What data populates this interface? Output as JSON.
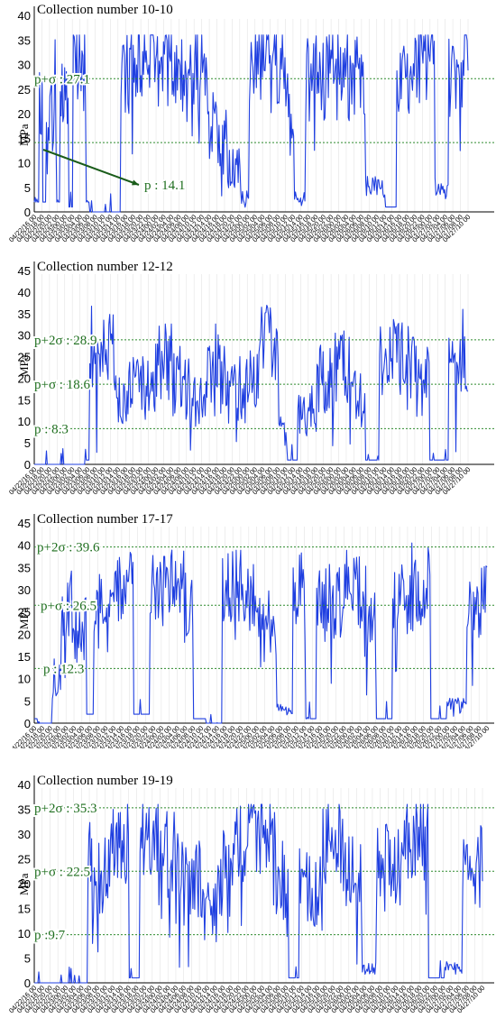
{
  "colors": {
    "series": "#1f3fe0",
    "threshold": "#2e8b2e",
    "threshold_text": "#1e6e1e",
    "arrow": "#1a5c1a"
  },
  "chart_data": [
    {
      "type": "line",
      "title": "Collection number 10-10",
      "ylabel": "MPa",
      "ylim": [
        0,
        40
      ],
      "yticks": [
        0,
        5,
        10,
        15,
        20,
        25,
        30,
        35,
        40
      ],
      "xtick_labels": [
        "04/22/16 00",
        "04/22/18 00",
        "04/22/20 00",
        "04/22/22 00",
        "04/23/00 00",
        "04/23/02 00",
        "04/23/04 00",
        "04/23/06 00",
        "04/23/08 00",
        "04/23/10 00",
        "04/23/12 00",
        "04/23/14 00",
        "04/23/16 00",
        "04/23/18 00",
        "04/23/20 00",
        "04/23/22 00",
        "04/24/00 00",
        "04/24/02 00",
        "04/24/04 00",
        "04/24/06 00",
        "04/24/08 00",
        "04/24/10 00",
        "04/24/12 00",
        "04/24/14 00",
        "04/24/16 00",
        "04/24/18 00",
        "04/24/20 00",
        "04/24/22 00",
        "04/25/00 00",
        "04/25/02 00",
        "04/25/04 00",
        "04/25/06 00",
        "04/25/08 00",
        "04/25/10 00",
        "04/25/12 00",
        "04/25/14 00",
        "04/25/16 00",
        "04/25/18 00",
        "04/25/20 00",
        "04/25/22 00",
        "04/26/00 00",
        "04/26/02 00",
        "04/26/04 00",
        "04/26/06 00",
        "04/26/08 00",
        "04/26/10 00",
        "04/26/12 00",
        "04/26/14 00",
        "04/26/16 00",
        "04/26/18 00",
        "04/26/20 00",
        "04/26/22 00",
        "04/27/00 00",
        "04/27/02 00",
        "04/27/04 00",
        "04/27/06 00",
        "04/27/08 00",
        "04/27/10 00"
      ],
      "thresholds": [
        {
          "label": "p+σ : 27.1",
          "value": 27.1
        },
        {
          "label": "p : 14.1",
          "value": 14.1,
          "annotated": true
        }
      ],
      "segments": [
        [
          0,
          6,
          2
        ],
        [
          6,
          10,
          22
        ],
        [
          10,
          14,
          2
        ],
        [
          14,
          26,
          20
        ],
        [
          26,
          30,
          2
        ],
        [
          30,
          40,
          24
        ],
        [
          40,
          45,
          1
        ],
        [
          45,
          60,
          29
        ],
        [
          60,
          64,
          2
        ],
        [
          64,
          100,
          0
        ],
        [
          100,
          120,
          27
        ],
        [
          120,
          138,
          32
        ],
        [
          138,
          160,
          29
        ],
        [
          160,
          180,
          27
        ],
        [
          180,
          200,
          30
        ],
        [
          200,
          212,
          18
        ],
        [
          212,
          224,
          13
        ],
        [
          224,
          238,
          9
        ],
        [
          238,
          248,
          3
        ],
        [
          248,
          262,
          31
        ],
        [
          262,
          280,
          34
        ],
        [
          280,
          292,
          27
        ],
        [
          292,
          300,
          20
        ],
        [
          300,
          313,
          3
        ],
        [
          313,
          340,
          27
        ],
        [
          340,
          360,
          31
        ],
        [
          360,
          382,
          27
        ],
        [
          382,
          404,
          5
        ],
        [
          404,
          418,
          1
        ],
        [
          418,
          440,
          29
        ],
        [
          440,
          462,
          31
        ],
        [
          462,
          478,
          4
        ],
        [
          478,
          496,
          27
        ],
        [
          496,
          500,
          31
        ]
      ]
    },
    {
      "type": "line",
      "title": "Collection number 12-12",
      "ylabel": "MPa",
      "ylim": [
        0,
        45
      ],
      "yticks": [
        0,
        5,
        10,
        15,
        20,
        25,
        30,
        35,
        40,
        45
      ],
      "xtick_labels": [
        "04/22/16 00",
        "04/22/18 00",
        "04/22/20 00",
        "04/22/22 00",
        "04/23/00 00",
        "04/23/02 00",
        "04/23/04 00",
        "04/23/06 00",
        "04/23/08 00",
        "04/23/10 00",
        "04/23/12 00",
        "04/23/14 00",
        "04/23/16 00",
        "04/23/18 00",
        "04/23/20 00",
        "04/23/22 00",
        "04/24/00 00",
        "04/24/02 00",
        "04/24/04 00",
        "04/24/06 00",
        "04/24/08 00",
        "04/24/10 00",
        "04/24/12 00",
        "04/24/14 00",
        "04/24/16 00",
        "04/24/18 00",
        "04/24/20 00",
        "04/24/22 00",
        "04/25/00 00",
        "04/25/02 00",
        "04/25/04 00",
        "04/25/06 00",
        "04/25/08 00",
        "04/25/10 00",
        "04/25/12 00",
        "04/25/14 00",
        "04/25/16 00",
        "04/25/18 00",
        "04/25/20 00",
        "04/25/22 00",
        "04/26/00 00",
        "04/26/02 00",
        "04/26/04 00",
        "04/26/06 00",
        "04/26/08 00",
        "04/26/10 00",
        "04/26/12 00",
        "04/26/14 00",
        "04/26/16 00",
        "04/26/18 00",
        "04/26/20 00",
        "04/26/22 00",
        "04/27/00 00",
        "04/27/02 00",
        "04/27/04 00",
        "04/27/06 00",
        "04/27/08 00",
        "04/27/10 00"
      ],
      "thresholds": [
        {
          "label": "p+2σ : 28.9",
          "value": 28.9
        },
        {
          "label": "p+σ : 18.6",
          "value": 18.6
        },
        {
          "label": "p : 8.3",
          "value": 8.3
        }
      ],
      "segments": [
        [
          0,
          60,
          0
        ],
        [
          60,
          64,
          1
        ],
        [
          64,
          78,
          22
        ],
        [
          78,
          92,
          27
        ],
        [
          92,
          110,
          16
        ],
        [
          110,
          140,
          18
        ],
        [
          140,
          160,
          24
        ],
        [
          160,
          180,
          19
        ],
        [
          180,
          200,
          16
        ],
        [
          200,
          220,
          20
        ],
        [
          220,
          245,
          17
        ],
        [
          245,
          262,
          22
        ],
        [
          262,
          282,
          28
        ],
        [
          282,
          292,
          8
        ],
        [
          292,
          304,
          1
        ],
        [
          304,
          326,
          12
        ],
        [
          326,
          346,
          20
        ],
        [
          346,
          366,
          23
        ],
        [
          366,
          382,
          15
        ],
        [
          382,
          398,
          1
        ],
        [
          398,
          420,
          25
        ],
        [
          420,
          440,
          24
        ],
        [
          440,
          456,
          20
        ],
        [
          456,
          478,
          1
        ],
        [
          478,
          500,
          22
        ]
      ]
    },
    {
      "type": "line",
      "title": "Collection number 17-17",
      "ylabel": "MPa",
      "ylim": [
        0,
        45
      ],
      "yticks": [
        0,
        5,
        10,
        15,
        20,
        25,
        30,
        35,
        40,
        45
      ],
      "xtick_labels": [
        "04/22/16 00",
        "04/22/18 00",
        "04/22/20 00",
        "04/22/22 00",
        "04/23/00 00",
        "04/23/02 00",
        "04/23/04 00",
        "04/23/06 00",
        "04/23/08 00",
        "04/23/10 00",
        "04/23/12 00",
        "04/23/14 00",
        "04/23/16 00",
        "04/23/18 00",
        "04/23/20 00",
        "04/23/22 00",
        "04/24/00 00",
        "04/24/02 00",
        "04/24/04 00",
        "04/24/06 00",
        "04/24/08 00",
        "04/24/10 00",
        "04/24/12 00",
        "04/24/14 00",
        "04/24/16 00",
        "04/24/18 00",
        "04/24/20 00",
        "04/24/22 00",
        "04/25/00 00",
        "04/25/02 00",
        "04/25/04 00",
        "04/25/06 00",
        "04/25/08 00",
        "04/25/10 00",
        "04/25/12 00",
        "04/25/14 00",
        "04/25/16 00",
        "04/25/18 00",
        "04/25/20 00",
        "04/25/22 00",
        "04/26/00 00",
        "04/26/02 00",
        "04/26/04 00",
        "04/26/06 00",
        "04/26/08 00",
        "04/26/10 00",
        "04/26/12 00",
        "04/26/14 00",
        "04/26/16 00",
        "04/26/18 00",
        "04/26/20 00",
        "04/26/22 00",
        "04/27/00 00",
        "04/27/02 00",
        "04/27/04 00",
        "04/27/06 00",
        "04/27/08 00",
        "04/27/10 00"
      ],
      "thresholds": [
        {
          "label": "p+2σ : 39.6",
          "value": 39.6
        },
        {
          "label": "p+σ : 26.5",
          "value": 26.5
        },
        {
          "label": "p : 12.3",
          "value": 12.3
        }
      ],
      "segments": [
        [
          0,
          4,
          1
        ],
        [
          4,
          20,
          0
        ],
        [
          20,
          30,
          10
        ],
        [
          30,
          45,
          26
        ],
        [
          45,
          58,
          22
        ],
        [
          58,
          66,
          2
        ],
        [
          66,
          86,
          25
        ],
        [
          86,
          110,
          30
        ],
        [
          110,
          128,
          2
        ],
        [
          128,
          160,
          30
        ],
        [
          160,
          176,
          27
        ],
        [
          176,
          190,
          1
        ],
        [
          190,
          208,
          0
        ],
        [
          208,
          226,
          31
        ],
        [
          226,
          250,
          26
        ],
        [
          250,
          268,
          22
        ],
        [
          268,
          286,
          3
        ],
        [
          286,
          300,
          31
        ],
        [
          300,
          312,
          1
        ],
        [
          312,
          342,
          27
        ],
        [
          342,
          362,
          30
        ],
        [
          362,
          378,
          21
        ],
        [
          378,
          396,
          1
        ],
        [
          396,
          420,
          28
        ],
        [
          420,
          438,
          31
        ],
        [
          438,
          456,
          1
        ],
        [
          456,
          478,
          4
        ],
        [
          478,
          500,
          27
        ]
      ]
    },
    {
      "type": "line",
      "title": "Collection number 19-19",
      "ylabel": "MPa",
      "ylim": [
        0,
        40
      ],
      "yticks": [
        0,
        5,
        10,
        15,
        20,
        25,
        30,
        35,
        40
      ],
      "xtick_labels": [
        "04/22/16 00",
        "04/22/18 00",
        "04/22/20 00",
        "04/22/22 00",
        "04/23/00 00",
        "04/23/02 00",
        "04/23/04 00",
        "04/23/06 00",
        "04/23/08 00",
        "04/23/10 00",
        "04/23/12 00",
        "04/23/14 00",
        "04/23/16 00",
        "04/23/18 00",
        "04/23/20 00",
        "04/23/22 00",
        "04/24/00 00",
        "04/24/02 00",
        "04/24/04 00",
        "04/24/06 00",
        "04/24/08 00",
        "04/24/10 00",
        "04/24/12 00",
        "04/24/14 00",
        "04/24/16 00",
        "04/24/18 00",
        "04/24/20 00",
        "04/24/22 00",
        "04/25/00 00",
        "04/25/02 00",
        "04/25/04 00",
        "04/25/06 00",
        "04/25/08 00",
        "04/25/10 00",
        "04/25/12 00",
        "04/25/14 00",
        "04/25/16 00",
        "04/25/18 00",
        "04/25/20 00",
        "04/25/22 00",
        "04/26/00 00",
        "04/26/02 00",
        "04/26/04 00",
        "04/26/06 00",
        "04/26/08 00",
        "04/26/10 00",
        "04/26/12 00",
        "04/26/14 00",
        "04/26/16 00",
        "04/26/18 00",
        "04/26/20 00",
        "04/26/22 00",
        "04/27/00 00",
        "04/27/02 00",
        "04/27/04 00",
        "04/27/06 00",
        "04/27/08 00",
        "04/27/10 00"
      ],
      "thresholds": [
        {
          "label": "p+2σ : 35.3",
          "value": 35.3
        },
        {
          "label": "p+σ : 22.5",
          "value": 22.5
        },
        {
          "label": "p :9.7",
          "value": 9.7
        }
      ],
      "segments": [
        [
          0,
          60,
          0
        ],
        [
          60,
          66,
          24
        ],
        [
          66,
          86,
          22
        ],
        [
          86,
          106,
          28
        ],
        [
          106,
          118,
          1
        ],
        [
          118,
          142,
          30
        ],
        [
          142,
          162,
          26
        ],
        [
          162,
          186,
          20
        ],
        [
          186,
          206,
          14
        ],
        [
          206,
          222,
          22
        ],
        [
          222,
          246,
          29
        ],
        [
          246,
          270,
          31
        ],
        [
          270,
          284,
          20
        ],
        [
          284,
          296,
          1
        ],
        [
          296,
          322,
          19
        ],
        [
          322,
          348,
          29
        ],
        [
          348,
          366,
          21
        ],
        [
          366,
          382,
          3
        ],
        [
          382,
          410,
          23
        ],
        [
          410,
          440,
          29
        ],
        [
          440,
          458,
          1
        ],
        [
          458,
          478,
          3
        ],
        [
          478,
          500,
          24
        ]
      ]
    }
  ]
}
